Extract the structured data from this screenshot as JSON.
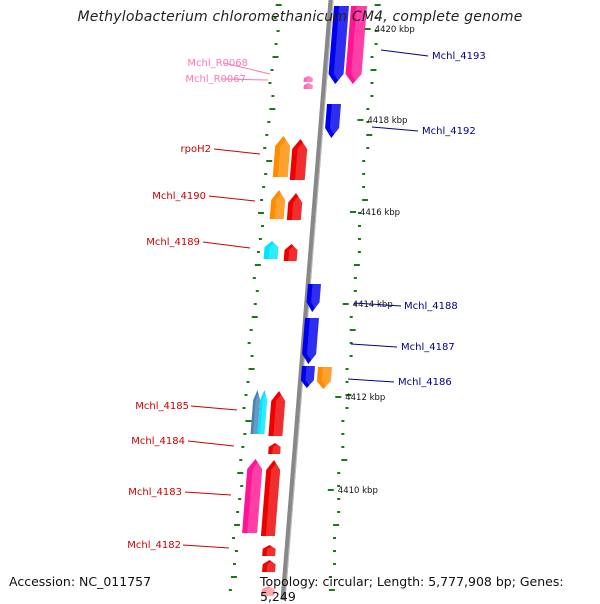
{
  "title": "Methylobacterium chloromethanicum CM4, complete genome",
  "accession": "Accession: NC_011757",
  "topology": "Topology: circular; Length: 5,777,908 bp; Genes: 5,249",
  "colors": {
    "backbone": "#808080",
    "blue": "#0000ee",
    "red": "#ee0000",
    "orange": "#ff8c00",
    "pink": "#ff1493",
    "rrna_pink": "#ff69b4",
    "cyan": "#00e5ff",
    "steelblue": "#4682b4",
    "ticks": "#1a7a1a",
    "label_blue": "#00008b",
    "label_red": "#cc0000",
    "label_pink": "#ff77b8"
  },
  "scale_labels": [
    "4420 kbp",
    "4418 kbp",
    "4416 kbp",
    "4414 kbp",
    "4412 kbp",
    "4410 kbp"
  ],
  "gene_labels": [
    {
      "text": "Mchl_4193",
      "color": "blue"
    },
    {
      "text": "Mchl_R0068",
      "color": "pink"
    },
    {
      "text": "Mchl_R0067",
      "color": "pink"
    },
    {
      "text": "Mchl_4192",
      "color": "blue"
    },
    {
      "text": "rpoH2",
      "color": "red"
    },
    {
      "text": "Mchl_4190",
      "color": "red"
    },
    {
      "text": "Mchl_4189",
      "color": "red"
    },
    {
      "text": "Mchl_4188",
      "color": "blue"
    },
    {
      "text": "Mchl_4187",
      "color": "blue"
    },
    {
      "text": "Mchl_4186",
      "color": "blue"
    },
    {
      "text": "Mchl_4185",
      "color": "red"
    },
    {
      "text": "Mchl_4184",
      "color": "red"
    },
    {
      "text": "Mchl_4183",
      "color": "red"
    },
    {
      "text": "Mchl_4182",
      "color": "red"
    }
  ]
}
